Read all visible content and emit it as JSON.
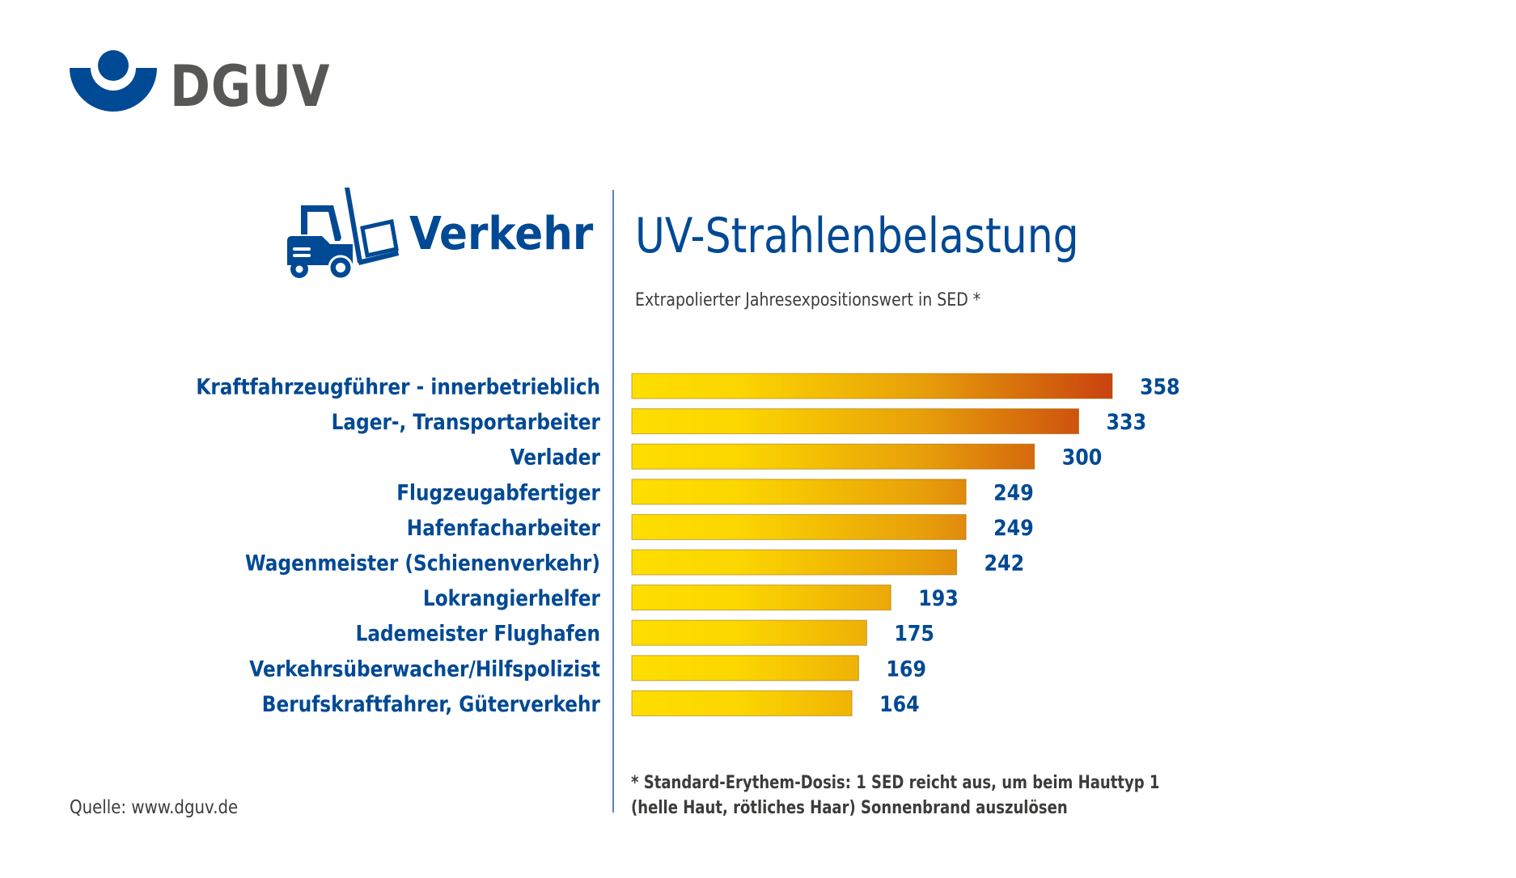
{
  "brand": {
    "logo_text": "DGUV",
    "primary_color": "#004994",
    "logo_text_color": "#575756"
  },
  "header": {
    "category_icon": "forklift-icon",
    "category_title": "Verkehr"
  },
  "chart_data": {
    "type": "bar",
    "orientation": "horizontal",
    "title": "UV-Strahlenbelastung",
    "subtitle": "Extrapolierter Jahresexpositionswert in SED *",
    "xlabel": "",
    "ylabel": "",
    "categories": [
      "Kraftfahrzeugführer - innerbetrieblich",
      "Lager-, Transportarbeiter",
      "Verlader",
      "Flugzeugabfertiger",
      "Hafenfacharbeiter",
      "Wagenmeister (Schienenverkehr)",
      "Lokrangierhelfer",
      "Lademeister Flughafen",
      "Verkehrsüberwacher/Hilfspolizist",
      "Berufskraftfahrer, Güterverkehr"
    ],
    "values": [
      358,
      333,
      300,
      249,
      249,
      242,
      193,
      175,
      169,
      164
    ],
    "value_labels": [
      "358",
      "333",
      "300",
      "249",
      "249",
      "242",
      "193",
      "175",
      "169",
      "164"
    ],
    "xlim": [
      0,
      358
    ],
    "grid": false,
    "legend": "none",
    "gradient_colors": [
      "#ffde00",
      "#fcd600",
      "#e8a00a",
      "#c9420f"
    ]
  },
  "footnote": {
    "line1": "* Standard-Erythem-Dosis: 1 SED reicht aus, um beim Hauttyp 1",
    "line2": "(helle Haut, rötliches Haar) Sonnenbrand auszulösen"
  },
  "source": "Quelle: www.dguv.de"
}
